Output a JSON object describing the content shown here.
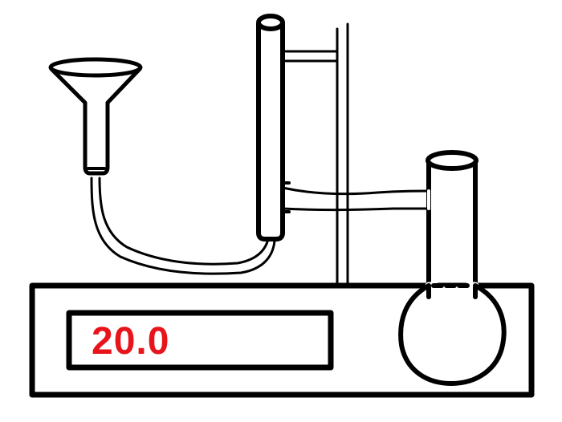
{
  "display": {
    "reading": "20.0"
  },
  "colors": {
    "line": "#000000",
    "background": "#ffffff",
    "reading": "#e8141c",
    "tube_fill": "#ffffff"
  },
  "apparatus": {
    "icons": [
      "funnel-icon",
      "rubber-tube-icon",
      "burette-tube-icon",
      "support-stand-icon",
      "connector-tube-icon",
      "round-flask-icon",
      "heater-base-icon",
      "digital-display-icon"
    ]
  }
}
